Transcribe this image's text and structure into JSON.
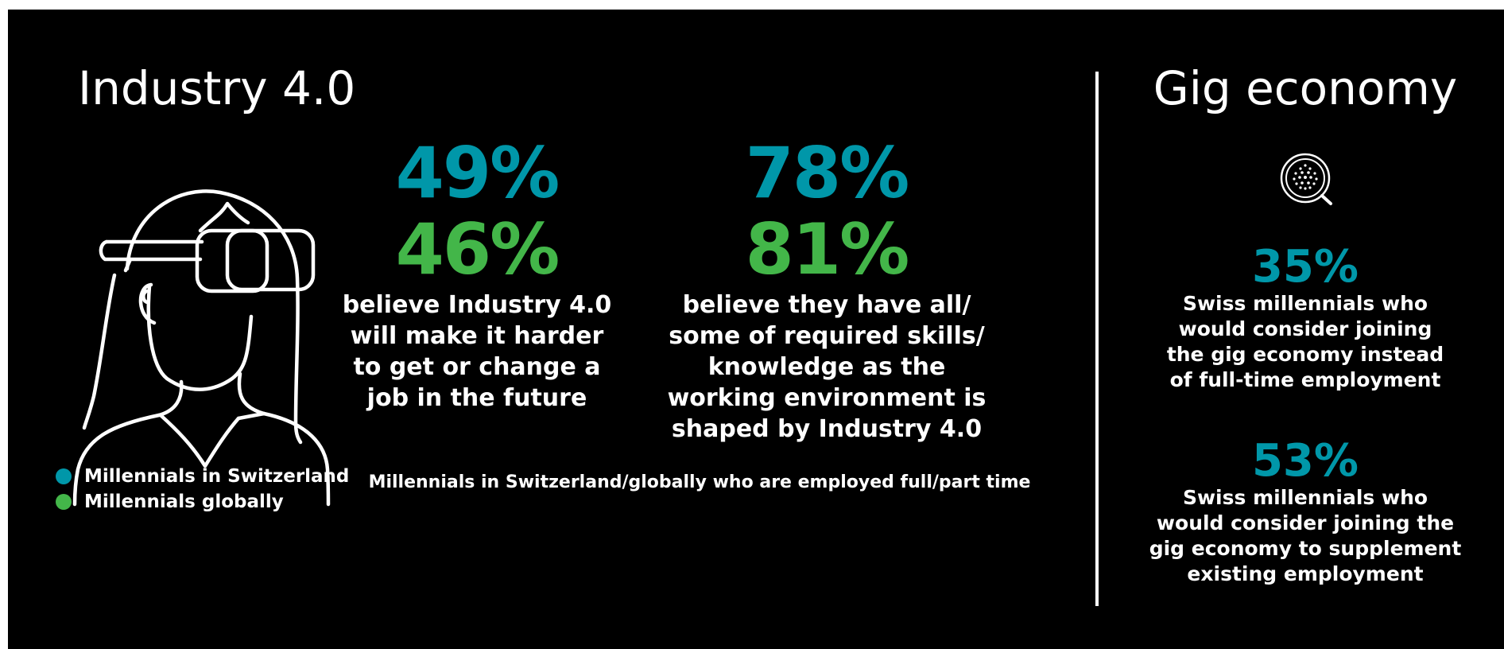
{
  "colors": {
    "switzerland": "#0097a9",
    "global": "#43b649",
    "background": "#000000",
    "text": "#ffffff"
  },
  "industry": {
    "title": "Industry 4.0",
    "stats": [
      {
        "swiss": "49%",
        "global": "46%",
        "description": [
          "believe Industry 4.0",
          "will make it harder",
          "to get or change a",
          "job in the future"
        ]
      },
      {
        "swiss": "78%",
        "global": "81%",
        "description": [
          "believe they have all/",
          "some of required skills/",
          "knowledge as the",
          "working environment is",
          "shaped by Industry 4.0"
        ]
      }
    ],
    "legend": [
      {
        "label": "Millennials in Switzerland",
        "color": "#0097a9"
      },
      {
        "label": "Millennials globally",
        "color": "#43b649"
      }
    ],
    "footnote": "Millennials in Switzerland/globally who are employed full/part time",
    "icon": "vr-headset-person-icon"
  },
  "gig": {
    "title": "Gig economy",
    "icon": "magnifier-dots-icon",
    "stats": [
      {
        "value": "35%",
        "description": [
          "Swiss millennials who",
          "would consider joining",
          "the gig economy instead",
          "of full-time employment"
        ]
      },
      {
        "value": "53%",
        "description": [
          "Swiss millennials who",
          "would consider joining the",
          "gig economy to supplement",
          "existing employment"
        ]
      }
    ]
  }
}
